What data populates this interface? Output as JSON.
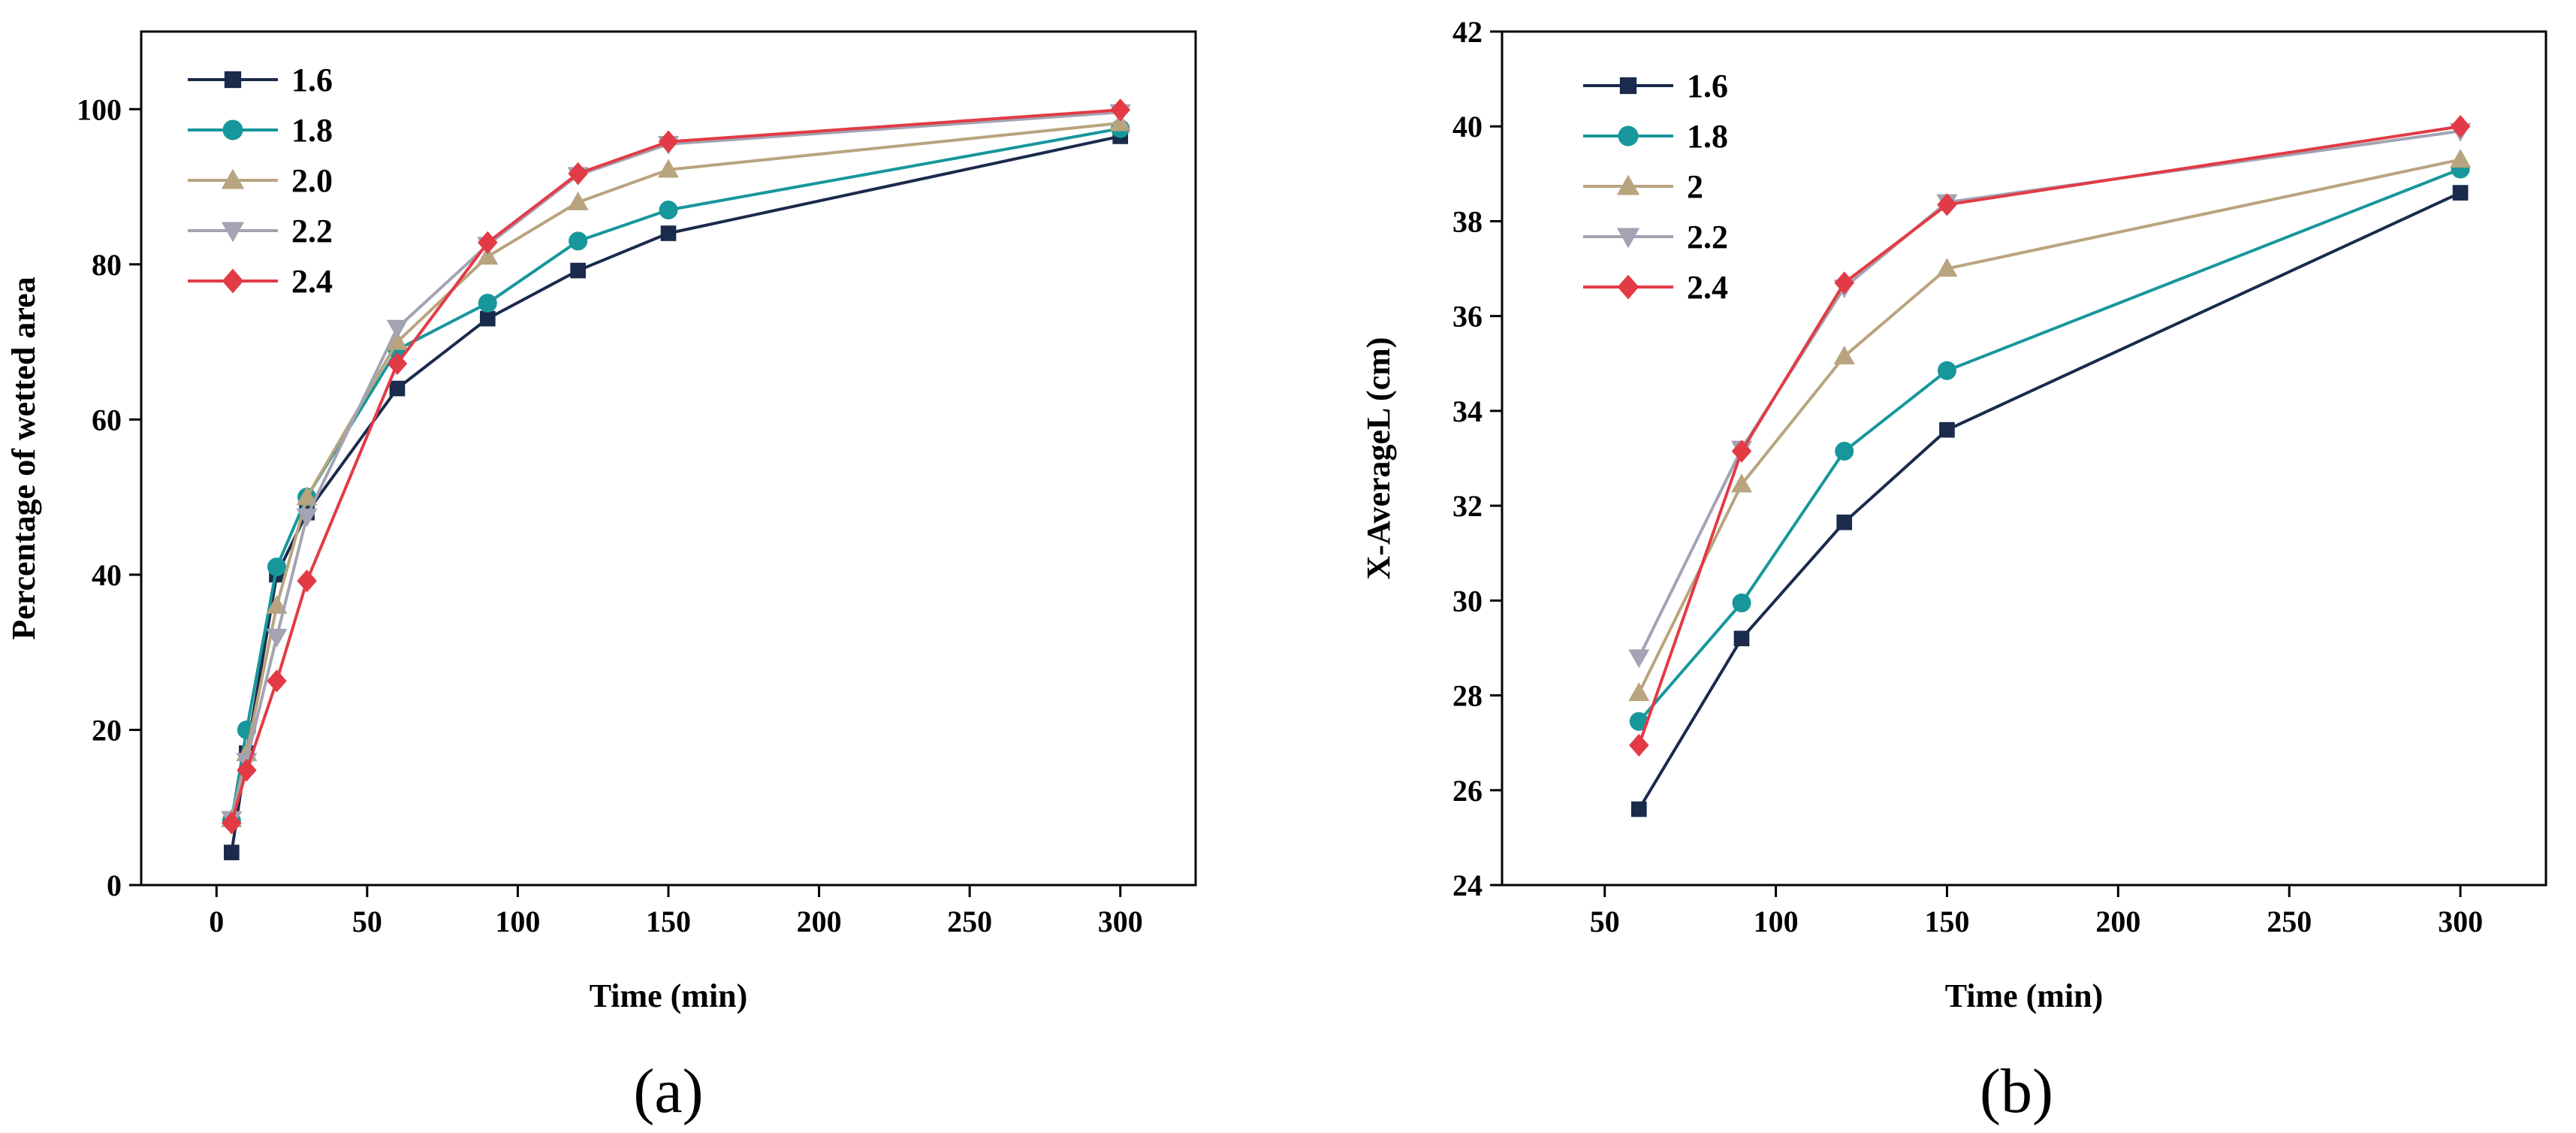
{
  "chart_data": [
    {
      "type": "line",
      "caption": "(a)",
      "xlabel": "Time (min)",
      "ylabel": "Percentage of wetted area",
      "xlim": [
        -25,
        325
      ],
      "ylim": [
        0,
        110
      ],
      "xticks": [
        0,
        50,
        100,
        150,
        200,
        250,
        300
      ],
      "yticks": [
        0,
        20,
        40,
        60,
        80,
        100
      ],
      "legend_position": "top-left",
      "x": [
        5,
        10,
        20,
        30,
        60,
        90,
        120,
        150,
        300
      ],
      "series": [
        {
          "name": "1.6",
          "color": "#1a2b4c",
          "marker": "square",
          "values": [
            4.2,
            17.0,
            40.0,
            48.0,
            64.0,
            73.0,
            79.2,
            84.0,
            96.5
          ]
        },
        {
          "name": "1.8",
          "color": "#17979c",
          "marker": "circle",
          "values": [
            8.3,
            20.0,
            41.0,
            50.0,
            69.0,
            75.0,
            83.0,
            87.0,
            97.5
          ]
        },
        {
          "name": "2.0",
          "color": "#b8a47e",
          "marker": "triangle-up",
          "values": [
            8.5,
            17.0,
            36.0,
            50.0,
            70.0,
            81.0,
            88.0,
            92.2,
            98.2
          ]
        },
        {
          "name": "2.2",
          "color": "#a3a3b3",
          "marker": "triangle-down",
          "values": [
            8.5,
            16.0,
            32.0,
            47.5,
            71.8,
            82.5,
            91.5,
            95.5,
            99.6
          ]
        },
        {
          "name": "2.4",
          "color": "#e23b45",
          "marker": "diamond",
          "values": [
            8.0,
            14.8,
            26.3,
            39.2,
            67.2,
            82.8,
            91.7,
            95.8,
            99.9
          ]
        }
      ]
    },
    {
      "type": "line",
      "caption": "(b)",
      "xlabel": "Time (min)",
      "ylabel": "X-AverageL (cm)",
      "xlim": [
        20,
        325
      ],
      "ylim": [
        24,
        42
      ],
      "xticks": [
        50,
        100,
        150,
        200,
        250,
        300
      ],
      "yticks": [
        24,
        26,
        28,
        30,
        32,
        34,
        36,
        38,
        40,
        42
      ],
      "legend_position": "top-left",
      "x": [
        60,
        90,
        120,
        150,
        300
      ],
      "series": [
        {
          "name": "1.6",
          "color": "#1a2b4c",
          "marker": "square",
          "values": [
            25.6,
            29.2,
            31.65,
            33.6,
            38.6
          ]
        },
        {
          "name": "1.8",
          "color": "#17979c",
          "marker": "circle",
          "values": [
            27.45,
            29.95,
            33.15,
            34.85,
            39.1
          ]
        },
        {
          "name": "2",
          "color": "#b8a47e",
          "marker": "triangle-up",
          "values": [
            28.05,
            32.45,
            35.15,
            37.0,
            39.3
          ]
        },
        {
          "name": "2.2",
          "color": "#a3a3b3",
          "marker": "triangle-down",
          "values": [
            28.8,
            33.2,
            36.6,
            38.4,
            39.9
          ]
        },
        {
          "name": "2.4",
          "color": "#e23b45",
          "marker": "diamond",
          "values": [
            26.95,
            33.15,
            36.7,
            38.35,
            40.0
          ]
        }
      ]
    }
  ]
}
